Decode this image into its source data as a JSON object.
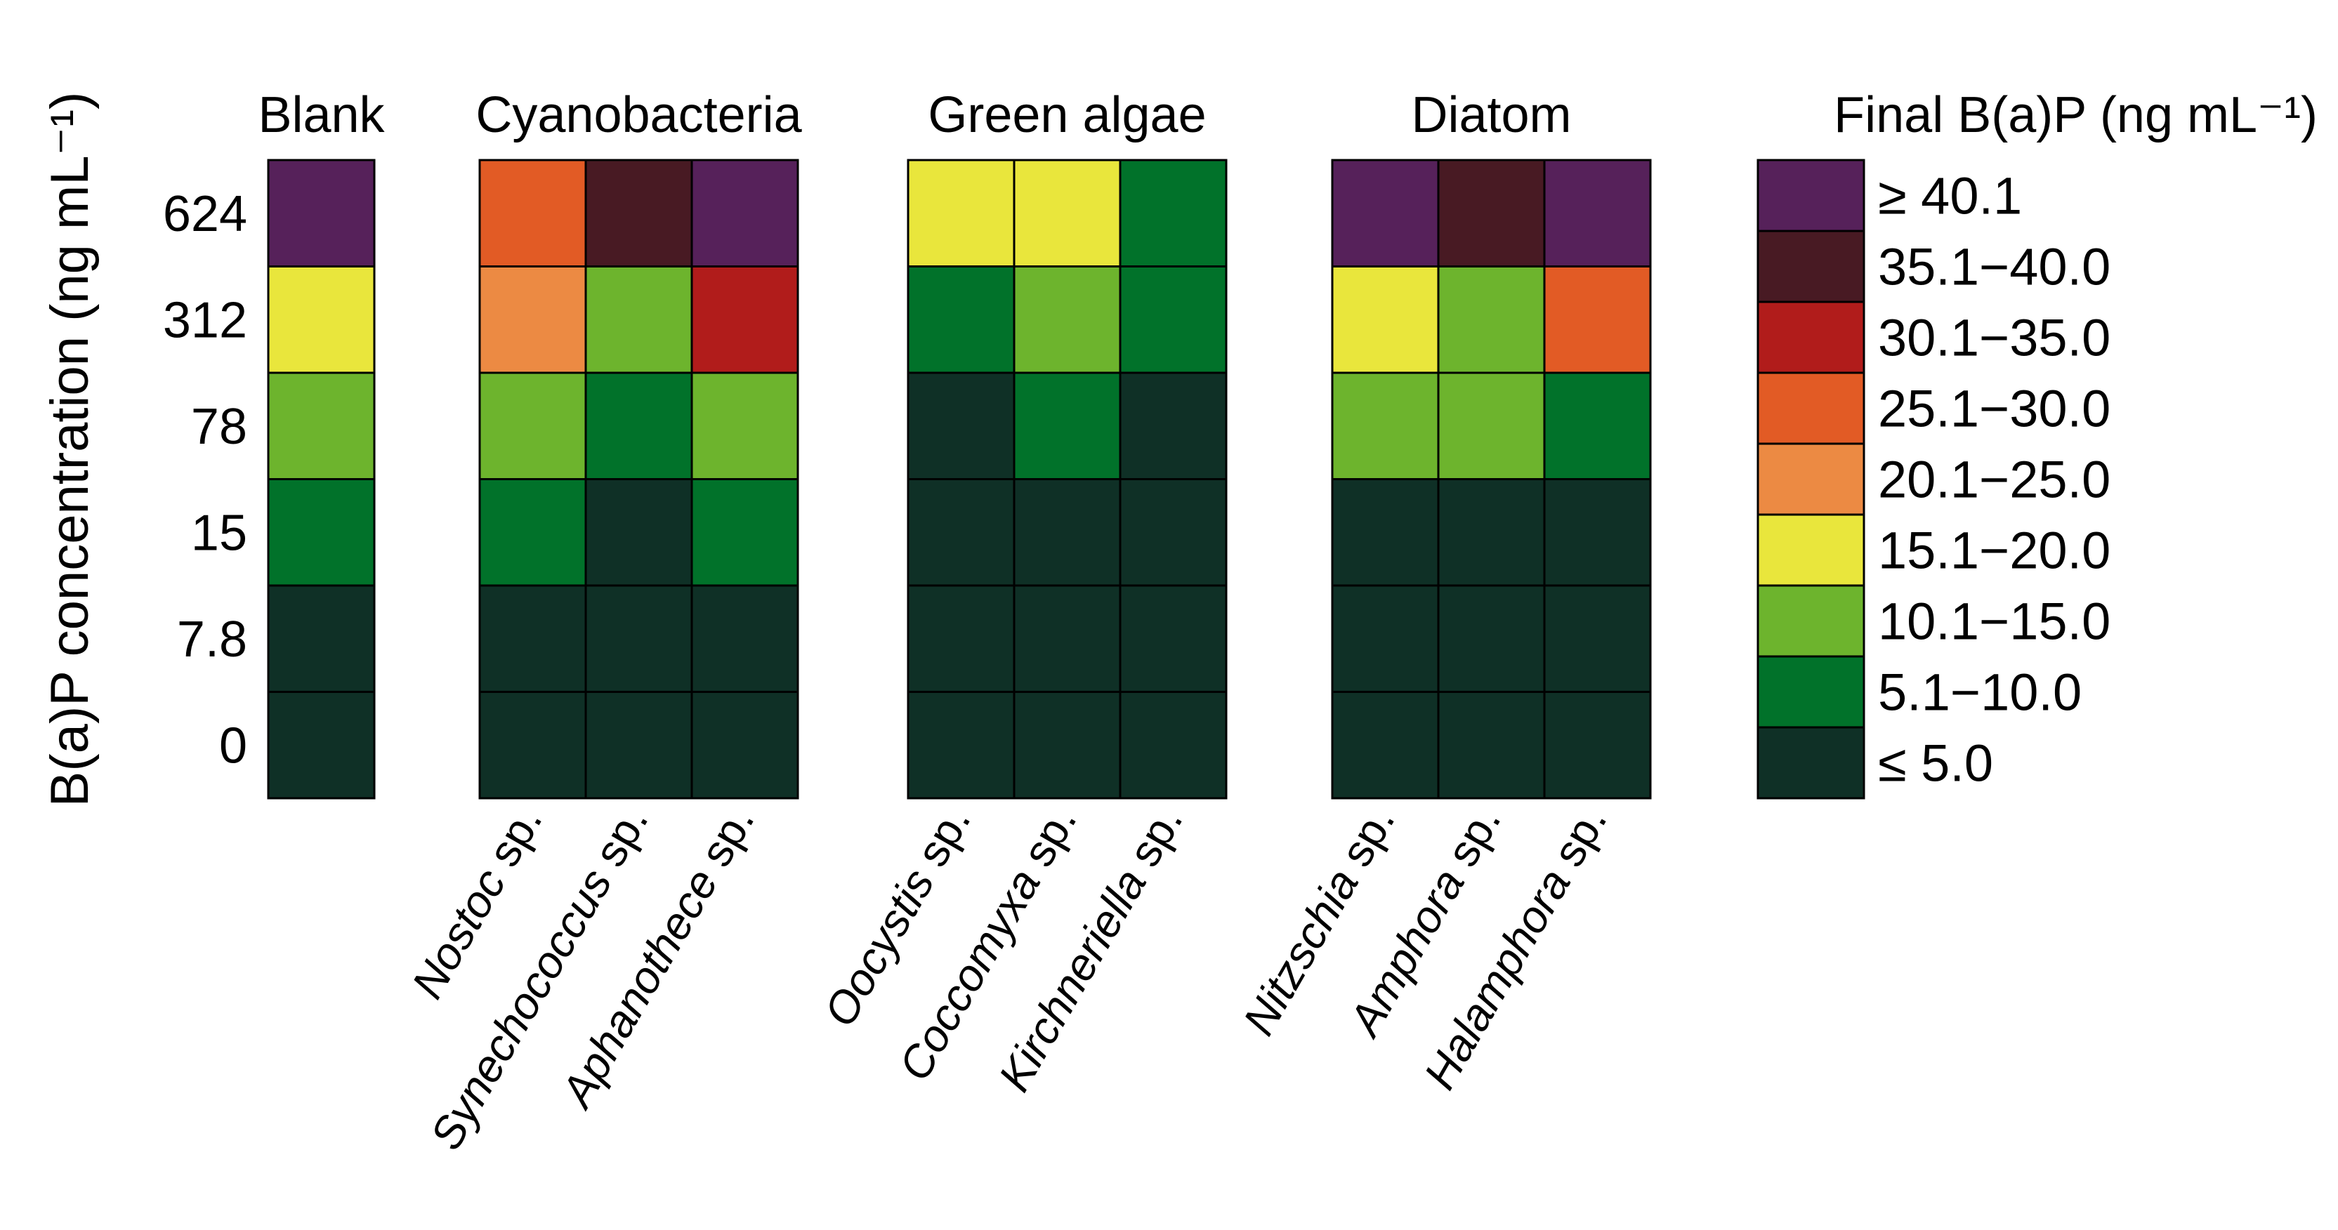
{
  "chart_data": {
    "type": "heatmap",
    "title": "",
    "ylabel": "B(a)P concentration (ng mL⁻¹)",
    "y_levels": [
      "624",
      "312",
      "78",
      "15",
      "7.8",
      "0"
    ],
    "groups": [
      {
        "name": "Blank",
        "species": [
          {
            "name": ""
          }
        ]
      },
      {
        "name": "Cyanobacteria",
        "species": [
          {
            "name": "Nostoc",
            "suffix": " sp."
          },
          {
            "name": "Synechococcus",
            "suffix": " sp."
          },
          {
            "name": "Aphanothece",
            "suffix": " sp."
          }
        ]
      },
      {
        "name": "Green algae",
        "species": [
          {
            "name": "Oocystis",
            "suffix": " sp."
          },
          {
            "name": "Coccomyxa",
            "suffix": " sp."
          },
          {
            "name": "Kirchneriella",
            "suffix": " sp."
          }
        ]
      },
      {
        "name": "Diatom",
        "species": [
          {
            "name": "Nitzschia",
            "suffix": " sp."
          },
          {
            "name": "Amphora",
            "suffix": " sp."
          },
          {
            "name": "Halamphora",
            "suffix": " sp."
          }
        ]
      }
    ],
    "matrix_note": "category index per cell: 0 = <=5.0, 1 = 5.1-10.0, 2 = 10.1-15.0, 3 = 15.1-20.0, 4 = 20.1-25.0, 5 = 25.1-30.0, 6 = 30.1-35.0, 7 = 35.1-40.0, 8 = >=40.1; rows follow y_levels, columns follow species",
    "values": [
      [
        [
          8
        ],
        [
          5,
          7,
          8
        ],
        [
          3,
          3,
          1
        ],
        [
          8,
          7,
          8
        ]
      ],
      [
        [
          3
        ],
        [
          4,
          2,
          6
        ],
        [
          1,
          2,
          1
        ],
        [
          3,
          2,
          5
        ]
      ],
      [
        [
          2
        ],
        [
          2,
          1,
          2
        ],
        [
          0,
          1,
          0
        ],
        [
          2,
          2,
          1
        ]
      ],
      [
        [
          1
        ],
        [
          1,
          0,
          1
        ],
        [
          0,
          0,
          0
        ],
        [
          0,
          0,
          0
        ]
      ],
      [
        [
          0
        ],
        [
          0,
          0,
          0
        ],
        [
          0,
          0,
          0
        ],
        [
          0,
          0,
          0
        ]
      ],
      [
        [
          0
        ],
        [
          0,
          0,
          0
        ],
        [
          0,
          0,
          0
        ],
        [
          0,
          0,
          0
        ]
      ]
    ],
    "legend": {
      "title": "Final B(a)P (ng mL⁻¹)",
      "entries": [
        {
          "label": "≥ 40.1",
          "color": "#56215a"
        },
        {
          "label": "35.1−40.0",
          "color": "#481a23"
        },
        {
          "label": "30.1−35.0",
          "color": "#b11c1b"
        },
        {
          "label": "25.1−30.0",
          "color": "#e25b25"
        },
        {
          "label": "20.1−25.0",
          "color": "#ec8a43"
        },
        {
          "label": "15.1−20.0",
          "color": "#e9e63c"
        },
        {
          "label": "10.1−15.0",
          "color": "#6db42d"
        },
        {
          "label": "5.1−10.0",
          "color": "#01722a"
        },
        {
          "label": "≤ 5.0",
          "color": "#0f3026"
        }
      ]
    }
  }
}
